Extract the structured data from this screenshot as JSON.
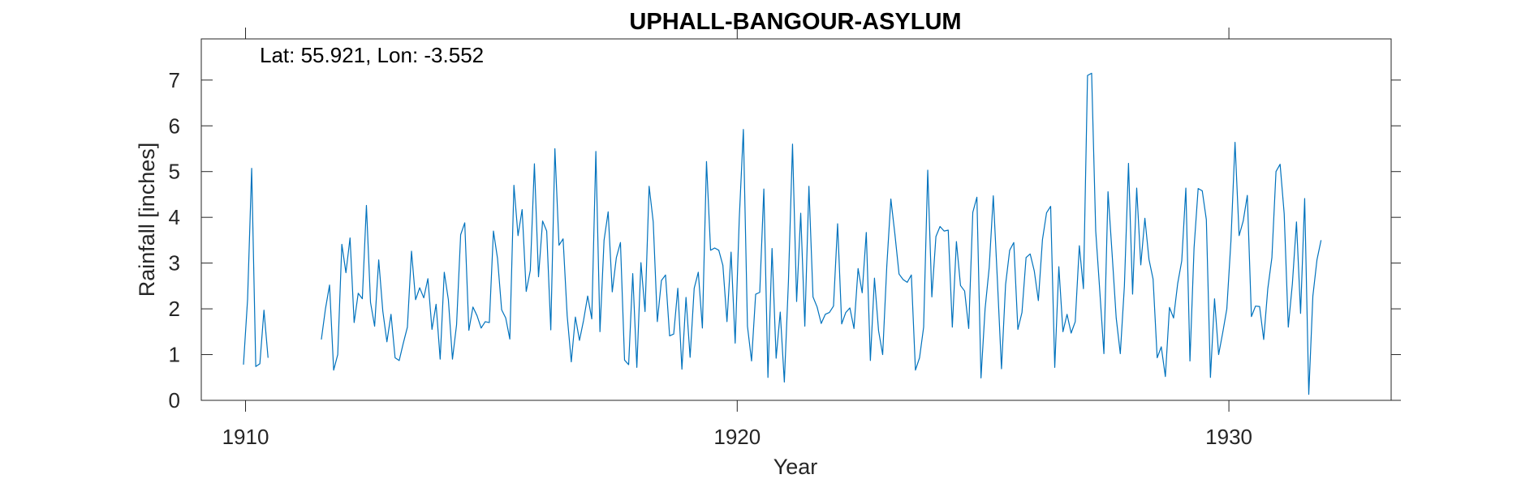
{
  "chart_data": {
    "type": "line",
    "title": "UPHALL-BANGOUR-ASYLUM",
    "annotation": "Lat: 55.921, Lon: -3.552",
    "xlabel": "Year",
    "ylabel": "Rainfall [inches]",
    "xlim": [
      1909.1,
      1933.3
    ],
    "ylim": [
      0,
      7.9
    ],
    "xticks": [
      1910,
      1920,
      1930
    ],
    "xtick_labels": [
      "1910",
      "1920",
      "1930"
    ],
    "yticks": [
      0,
      1,
      2,
      3,
      4,
      5,
      6,
      7
    ],
    "ytick_labels": [
      "0",
      "1",
      "2",
      "3",
      "4",
      "5",
      "6",
      "7"
    ],
    "grid": false,
    "line_color": "#0072BD",
    "series": [
      {
        "segments": [
          {
            "x_start": 1909.958,
            "x_step": 0.08333,
            "values": [
              0.78,
              2.2,
              5.07,
              0.74,
              0.8,
              1.97,
              0.93
            ]
          },
          {
            "x_start": 1911.542,
            "x_step": 0.08333,
            "values": [
              1.33,
              2.0,
              2.52,
              0.66,
              1.0,
              3.41,
              2.79,
              3.55,
              1.7,
              2.34,
              2.22,
              4.26,
              2.14,
              1.62,
              3.07,
              1.95,
              1.28,
              1.88,
              0.93,
              0.87,
              1.25,
              1.6,
              3.26,
              2.2,
              2.46,
              2.24,
              2.66,
              1.55,
              2.1,
              0.9,
              2.8,
              2.2,
              0.9,
              1.65,
              3.62,
              3.88,
              1.53,
              2.04,
              1.85,
              1.58,
              1.72,
              1.7,
              3.7,
              3.1,
              1.98,
              1.8,
              1.34,
              4.7,
              3.6,
              4.17,
              2.38,
              2.84,
              5.17,
              2.7,
              3.92,
              3.7,
              1.54,
              5.5,
              3.39,
              3.53,
              1.85,
              0.84,
              1.82,
              1.31,
              1.75,
              2.28,
              1.78,
              5.44,
              1.5,
              3.5,
              4.12,
              2.37,
              3.12,
              3.45,
              0.88,
              0.78,
              2.77,
              0.72,
              3.01,
              1.94,
              4.68,
              3.9,
              1.72,
              2.62,
              2.74,
              1.41,
              1.45,
              2.45,
              0.68,
              2.25,
              0.94,
              2.45,
              2.8,
              1.58,
              5.22,
              3.28,
              3.33,
              3.28,
              2.95,
              1.72,
              3.24,
              1.25,
              3.97,
              5.92,
              1.62,
              0.86,
              2.32,
              2.36,
              4.62,
              0.5,
              3.32,
              0.92,
              1.93,
              0.4,
              2.6,
              5.6,
              2.16,
              4.09,
              1.62,
              4.68,
              2.26,
              2.04,
              1.68,
              1.88,
              1.92,
              2.06,
              3.86,
              1.67,
              1.92,
              2.02,
              1.57,
              2.88,
              2.35,
              3.67,
              0.87,
              2.67,
              1.52,
              1.0,
              2.92,
              4.4,
              3.62,
              2.76,
              2.64,
              2.58,
              2.74,
              0.66,
              0.93,
              1.6,
              5.03,
              2.26,
              3.58,
              3.8,
              3.7,
              3.72,
              1.6,
              3.47,
              2.51,
              2.39,
              1.57,
              4.11,
              4.44,
              0.49,
              2.0,
              2.9,
              4.47,
              2.63,
              0.69,
              2.53,
              3.28,
              3.45,
              1.55,
              1.92,
              3.12,
              3.2,
              2.83,
              2.18,
              3.51,
              4.1,
              4.24,
              0.72,
              2.92,
              1.5,
              1.88,
              1.47,
              1.72,
              3.38,
              2.44,
              7.1,
              7.15,
              3.7,
              2.38,
              1.02,
              4.56,
              3.2,
              1.8,
              1.02,
              2.5,
              5.18,
              2.32,
              4.64,
              2.96,
              3.98,
              3.08,
              2.65,
              0.93,
              1.17,
              0.52,
              2.03,
              1.8,
              2.55,
              3.05,
              4.64,
              0.86,
              3.33,
              4.63,
              4.58,
              3.95,
              0.5,
              2.22,
              1.0,
              1.48,
              2.0,
              3.48,
              5.64,
              3.6,
              3.92,
              4.48,
              1.83,
              2.06,
              2.05,
              1.33,
              2.44,
              3.12,
              5.0,
              5.16,
              4.08,
              1.6,
              2.55,
              3.9,
              1.9,
              4.41,
              0.13,
              2.28,
              3.07,
              3.5
            ]
          }
        ]
      }
    ]
  }
}
